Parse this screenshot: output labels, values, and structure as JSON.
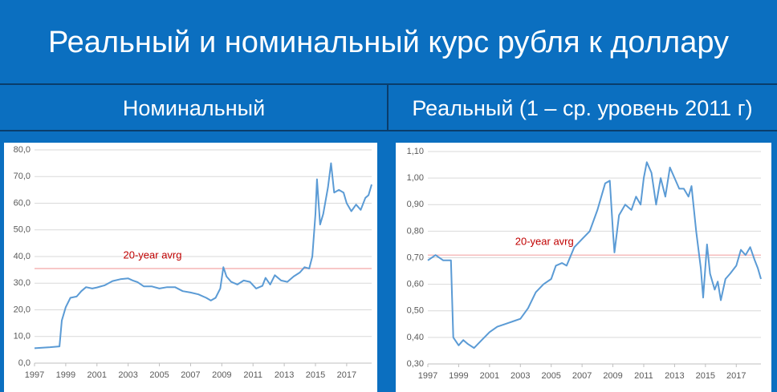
{
  "title": "Реальный и номинальный курс рубля к доллару",
  "columns": [
    "Номинальный",
    "Реальный (1 – ср. уровень 2011 г)"
  ],
  "chart_data": [
    {
      "type": "line",
      "x": [
        1997.0,
        1997.5,
        1998.0,
        1998.6,
        1998.75,
        1999.0,
        1999.3,
        1999.7,
        2000.0,
        2000.3,
        2000.7,
        2001.0,
        2001.5,
        2002.0,
        2002.5,
        2003.0,
        2003.3,
        2003.6,
        2004.0,
        2004.5,
        2005.0,
        2005.5,
        2006.0,
        2006.5,
        2007.0,
        2007.5,
        2008.0,
        2008.3,
        2008.6,
        2008.9,
        2009.1,
        2009.3,
        2009.6,
        2010.0,
        2010.4,
        2010.8,
        2011.2,
        2011.6,
        2011.8,
        2012.1,
        2012.4,
        2012.8,
        2013.2,
        2013.6,
        2014.0,
        2014.3,
        2014.6,
        2014.8,
        2015.0,
        2015.1,
        2015.3,
        2015.5,
        2015.8,
        2016.0,
        2016.2,
        2016.5,
        2016.8,
        2017.0,
        2017.3,
        2017.6,
        2017.9,
        2018.2,
        2018.4,
        2018.6
      ],
      "series": [
        {
          "color": "#5b9bd5",
          "values": [
            5.6,
            5.8,
            6.0,
            6.3,
            16,
            21,
            24.5,
            25,
            27,
            28.5,
            28,
            28.4,
            29.2,
            30.8,
            31.5,
            31.8,
            31,
            30.4,
            28.8,
            28.8,
            28,
            28.5,
            28.5,
            27,
            26.5,
            25.8,
            24.5,
            23.5,
            24.5,
            28,
            36,
            32.5,
            30.5,
            29.5,
            31,
            30.5,
            28,
            29,
            32,
            29.5,
            33,
            31,
            30.5,
            32.5,
            34,
            36,
            35.5,
            40,
            56,
            69,
            52,
            56,
            66,
            75,
            64,
            65,
            64,
            60,
            57,
            59.5,
            57.5,
            62,
            63,
            67
          ]
        }
      ],
      "reference_line": {
        "value": 35.5,
        "label": "20-year avrg",
        "color": "#f4a6a6",
        "label_color": "#c00000"
      },
      "xlim": [
        1997,
        2018.6
      ],
      "xticks": [
        1997,
        1999,
        2001,
        2003,
        2005,
        2007,
        2009,
        2011,
        2013,
        2015,
        2017
      ],
      "ylim": [
        0,
        80
      ],
      "yticks": [
        {
          "value": 0,
          "label": "0,0"
        },
        {
          "value": 10,
          "label": "10,0"
        },
        {
          "value": 20,
          "label": "20,0"
        },
        {
          "value": 30,
          "label": "30,0"
        },
        {
          "value": 40,
          "label": "40,0"
        },
        {
          "value": 50,
          "label": "50,0"
        },
        {
          "value": 60,
          "label": "60,0"
        },
        {
          "value": 70,
          "label": "70,0"
        },
        {
          "value": 80,
          "label": "80,0"
        }
      ],
      "grid": true
    },
    {
      "type": "line",
      "x": [
        1997.0,
        1997.5,
        1998.0,
        1998.5,
        1998.65,
        1999.0,
        1999.3,
        1999.6,
        2000.0,
        2000.5,
        2001.0,
        2001.5,
        2002.0,
        2002.5,
        2003.0,
        2003.5,
        2004.0,
        2004.5,
        2005.0,
        2005.3,
        2005.7,
        2006.0,
        2006.5,
        2007.0,
        2007.5,
        2008.0,
        2008.5,
        2008.8,
        2009.0,
        2009.1,
        2009.4,
        2009.8,
        2010.2,
        2010.5,
        2010.8,
        2011.0,
        2011.2,
        2011.5,
        2011.8,
        2012.1,
        2012.4,
        2012.7,
        2013.0,
        2013.3,
        2013.6,
        2013.9,
        2014.1,
        2014.4,
        2014.7,
        2014.85,
        2015.1,
        2015.3,
        2015.6,
        2015.8,
        2016.0,
        2016.3,
        2016.6,
        2017.0,
        2017.3,
        2017.6,
        2017.9,
        2018.2,
        2018.4,
        2018.6
      ],
      "series": [
        {
          "color": "#5b9bd5",
          "values": [
            0.69,
            0.71,
            0.69,
            0.69,
            0.4,
            0.37,
            0.39,
            0.375,
            0.36,
            0.39,
            0.42,
            0.44,
            0.45,
            0.46,
            0.47,
            0.51,
            0.57,
            0.6,
            0.62,
            0.67,
            0.68,
            0.67,
            0.74,
            0.77,
            0.8,
            0.88,
            0.98,
            0.99,
            0.8,
            0.72,
            0.86,
            0.9,
            0.88,
            0.93,
            0.9,
            1.0,
            1.06,
            1.02,
            0.9,
            1.0,
            0.93,
            1.04,
            1.0,
            0.96,
            0.96,
            0.93,
            0.97,
            0.8,
            0.66,
            0.55,
            0.75,
            0.64,
            0.58,
            0.61,
            0.54,
            0.62,
            0.64,
            0.67,
            0.73,
            0.71,
            0.74,
            0.69,
            0.66,
            0.62
          ]
        }
      ],
      "reference_line": {
        "value": 0.71,
        "label": "20-year avrg",
        "color": "#f4a6a6",
        "label_color": "#c00000"
      },
      "xlim": [
        1997,
        2018.6
      ],
      "xticks": [
        1997,
        1999,
        2001,
        2003,
        2005,
        2007,
        2009,
        2011,
        2013,
        2015,
        2017
      ],
      "ylim": [
        0.3,
        1.1
      ],
      "yticks": [
        {
          "value": 0.3,
          "label": "0,30"
        },
        {
          "value": 0.4,
          "label": "0,40"
        },
        {
          "value": 0.5,
          "label": "0,50"
        },
        {
          "value": 0.6,
          "label": "0,60"
        },
        {
          "value": 0.7,
          "label": "0,70"
        },
        {
          "value": 0.8,
          "label": "0,80"
        },
        {
          "value": 0.9,
          "label": "0,90"
        },
        {
          "value": 1.0,
          "label": "1,00"
        },
        {
          "value": 1.1,
          "label": "1,10"
        }
      ],
      "grid": true
    }
  ]
}
